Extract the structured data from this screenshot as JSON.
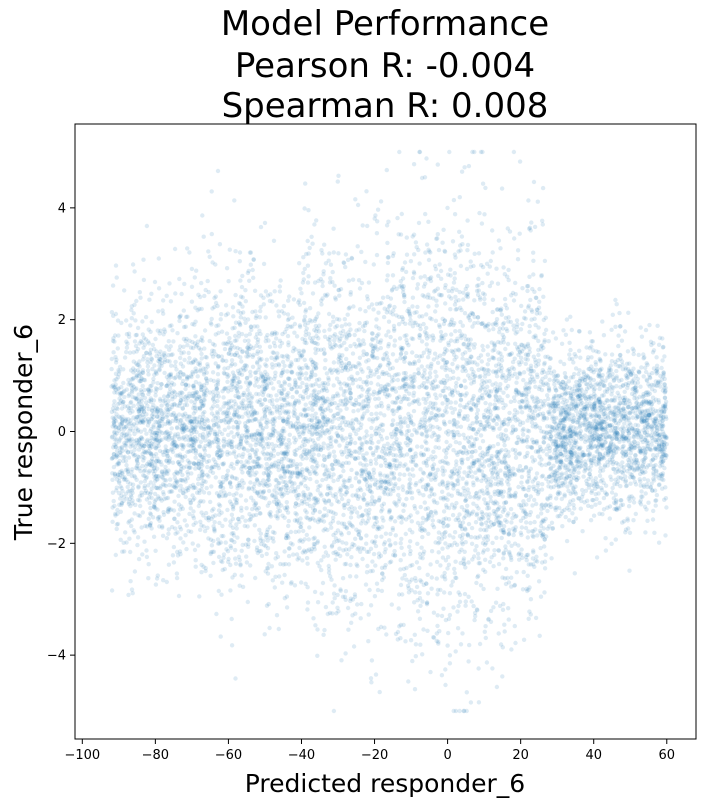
{
  "chart_data": {
    "type": "scatter",
    "title_lines": [
      "Model Performance",
      "Pearson R: -0.004",
      "Spearman R: 0.008"
    ],
    "xlabel": "Predicted responder_6",
    "ylabel": "True responder_6",
    "xlim": [
      -102,
      68
    ],
    "ylim": [
      -5.5,
      5.5
    ],
    "xticks": [
      -100,
      -80,
      -60,
      -40,
      -20,
      0,
      20,
      40,
      60
    ],
    "yticks": [
      -4,
      -2,
      0,
      2,
      4
    ],
    "grid": false,
    "legend": "none",
    "marker": {
      "color": "#1f77b4",
      "alpha": 0.15
    },
    "y_clip": [
      -5,
      5
    ],
    "point_density": [
      {
        "x_range": [
          -92,
          -68
        ],
        "y_center": 0,
        "y_sd": 1.1
      },
      {
        "x_range": [
          -68,
          -40
        ],
        "y_center": 0,
        "y_sd": 1.3
      },
      {
        "x_range": [
          -40,
          -10
        ],
        "y_center": 0,
        "y_sd": 1.6
      },
      {
        "x_range": [
          -10,
          10
        ],
        "y_center": 0,
        "y_sd": 1.9
      },
      {
        "x_range": [
          10,
          27
        ],
        "y_center": 0,
        "y_sd": 1.6
      },
      {
        "x_range": [
          27,
          60
        ],
        "y_center": 0,
        "y_sd": 0.75
      }
    ]
  }
}
